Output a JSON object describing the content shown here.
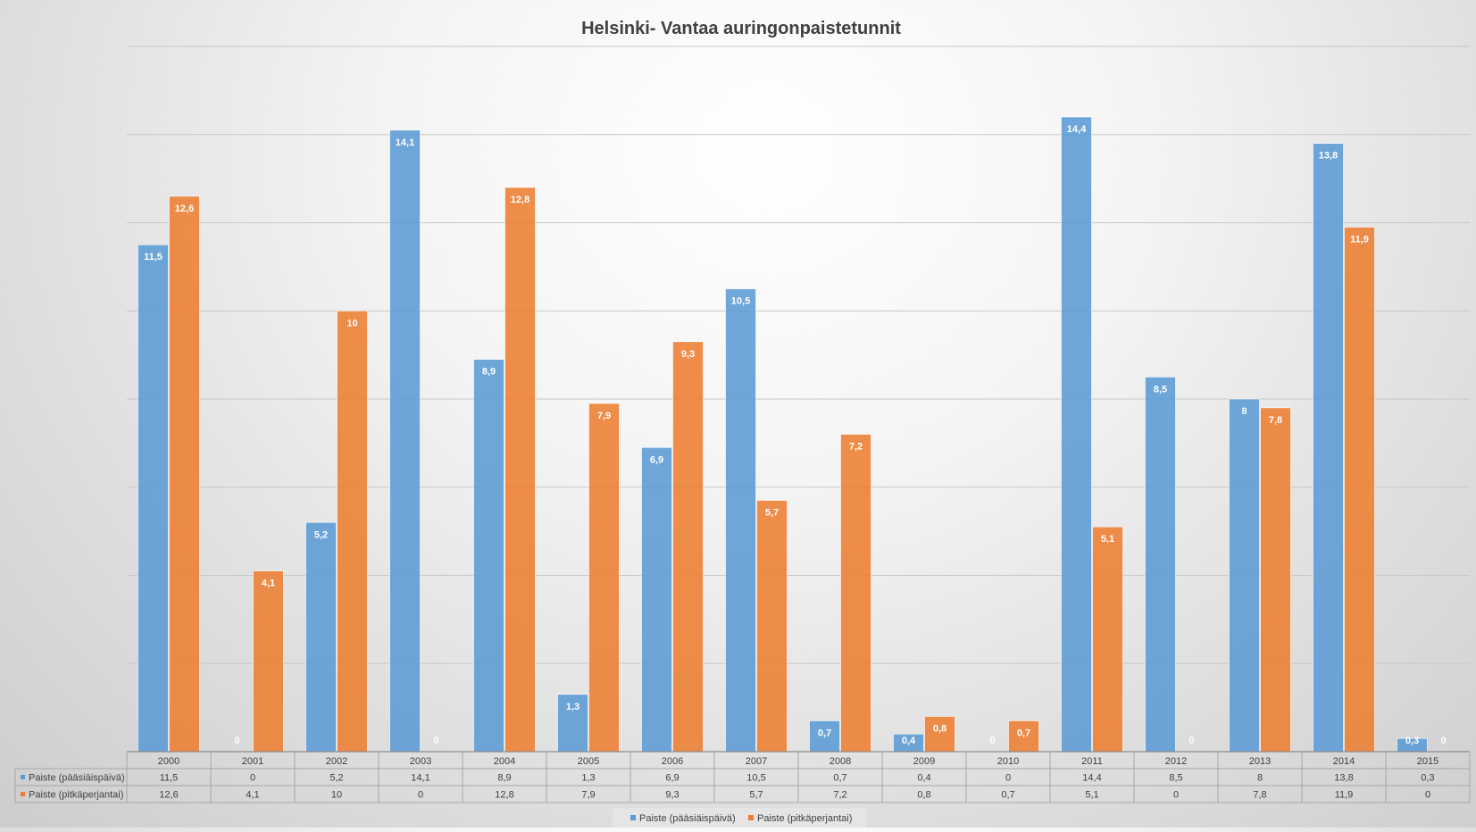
{
  "chart_data": {
    "type": "bar",
    "title": "Helsinki- Vantaa auringonpaistetunnit",
    "categories": [
      "2000",
      "2001",
      "2002",
      "2003",
      "2004",
      "2005",
      "2006",
      "2007",
      "2008",
      "2009",
      "2010",
      "2011",
      "2012",
      "2013",
      "2014",
      "2015"
    ],
    "series": [
      {
        "name": "Paiste (pääsiäispäivä)",
        "color": "#5b9bd5",
        "values": [
          11.5,
          0,
          5.2,
          14.1,
          8.9,
          1.3,
          6.9,
          10.5,
          0.7,
          0.4,
          0,
          14.4,
          8.5,
          8,
          13.8,
          0.3
        ],
        "labels": [
          "11,5",
          "0",
          "5,2",
          "14,1",
          "8,9",
          "1,3",
          "6,9",
          "10,5",
          "0,7",
          "0,4",
          "0",
          "14,4",
          "8,5",
          "8",
          "13,8",
          "0,3"
        ]
      },
      {
        "name": "Paiste (pitkäperjantai)",
        "color": "#ed7d31",
        "values": [
          12.6,
          4.1,
          10,
          0,
          12.8,
          7.9,
          9.3,
          5.7,
          7.2,
          0.8,
          0.7,
          5.1,
          0,
          7.8,
          11.9,
          0
        ],
        "labels": [
          "12,6",
          "4,1",
          "10",
          "0",
          "12,8",
          "7,9",
          "9,3",
          "5,7",
          "7,2",
          "0,8",
          "0,7",
          "5,1",
          "0",
          "7,8",
          "11,9",
          "0"
        ]
      }
    ],
    "ylim": [
      0,
      16
    ],
    "grid": true,
    "legend": "bottom",
    "data_table": true
  }
}
